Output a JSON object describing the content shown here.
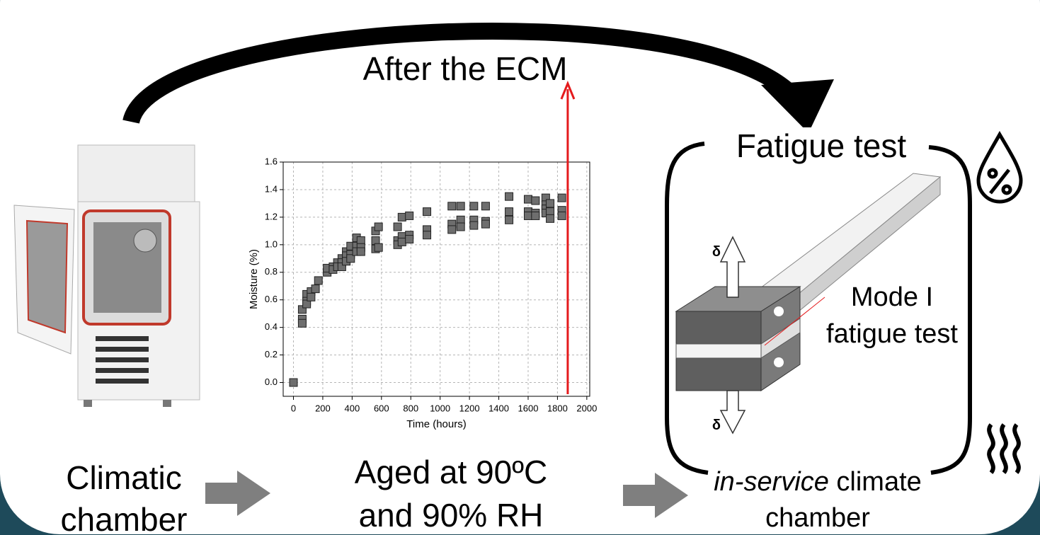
{
  "labels": {
    "top_arrow": "After the ECM",
    "fatigue": "Fatigue test",
    "mode_line1": "Mode I",
    "mode_line2": "fatigue test",
    "delta_top": "δ",
    "delta_bottom": "δ",
    "chamber_line1": "Climatic",
    "chamber_line2": "chamber",
    "aged_line1": "Aged at 90ºC",
    "aged_line2": "and 90% RH",
    "inservice_italic": "in-service",
    "inservice_rest": " climate",
    "inservice_line2": "chamber"
  },
  "chart_data": {
    "type": "scatter",
    "xlabel": "Time (hours)",
    "ylabel": "Moisture (%)",
    "xlim": [
      -70,
      2020
    ],
    "ylim": [
      -0.1,
      1.6
    ],
    "xticks": [
      0,
      200,
      400,
      600,
      800,
      1000,
      1200,
      1400,
      1600,
      1800,
      2000
    ],
    "yticks": [
      {
        "value": 0,
        "label": "0.0"
      },
      0.2,
      0.4,
      0.6,
      0.8,
      {
        "value": 1,
        "label": "1.0"
      },
      1.2,
      1.4,
      1.6
    ],
    "grid": true,
    "color": "#6e6e6e",
    "x": [
      0,
      60,
      60,
      60,
      90,
      90,
      90,
      120,
      120,
      150,
      170,
      230,
      230,
      270,
      270,
      300,
      300,
      330,
      330,
      330,
      360,
      360,
      360,
      390,
      390,
      390,
      430,
      430,
      430,
      460,
      460,
      460,
      560,
      560,
      560,
      580,
      580,
      710,
      710,
      710,
      740,
      740,
      740,
      790,
      790,
      790,
      910,
      910,
      910,
      1080,
      1080,
      1080,
      1140,
      1140,
      1140,
      1230,
      1230,
      1230,
      1310,
      1310,
      1310,
      1470,
      1470,
      1470,
      1600,
      1600,
      1600,
      1650,
      1650,
      1650,
      1720,
      1720,
      1720,
      1720,
      1750,
      1750,
      1750,
      1830,
      1830,
      1830
    ],
    "y": [
      0,
      0.53,
      0.46,
      0.43,
      0.64,
      0.59,
      0.57,
      0.66,
      0.62,
      0.68,
      0.74,
      0.8,
      0.83,
      0.84,
      0.82,
      0.87,
      0.84,
      0.9,
      0.87,
      0.84,
      0.95,
      0.92,
      0.88,
      0.99,
      0.93,
      0.9,
      1.05,
      0.99,
      0.95,
      1.03,
      0.98,
      0.95,
      1.1,
      1.03,
      0.97,
      1.13,
      0.98,
      1.13,
      1.03,
      1.0,
      1.2,
      1.06,
      1.02,
      1.21,
      1.07,
      1.04,
      1.24,
      1.11,
      1.07,
      1.28,
      1.15,
      1.11,
      1.28,
      1.18,
      1.13,
      1.28,
      1.18,
      1.14,
      1.28,
      1.17,
      1.15,
      1.35,
      1.24,
      1.18,
      1.33,
      1.24,
      1.21,
      1.32,
      1.23,
      1.21,
      1.34,
      1.29,
      1.26,
      1.23,
      1.3,
      1.24,
      1.19,
      1.34,
      1.25,
      1.21
    ],
    "vline": {
      "x": 1870,
      "color": "#e41a1c"
    }
  }
}
